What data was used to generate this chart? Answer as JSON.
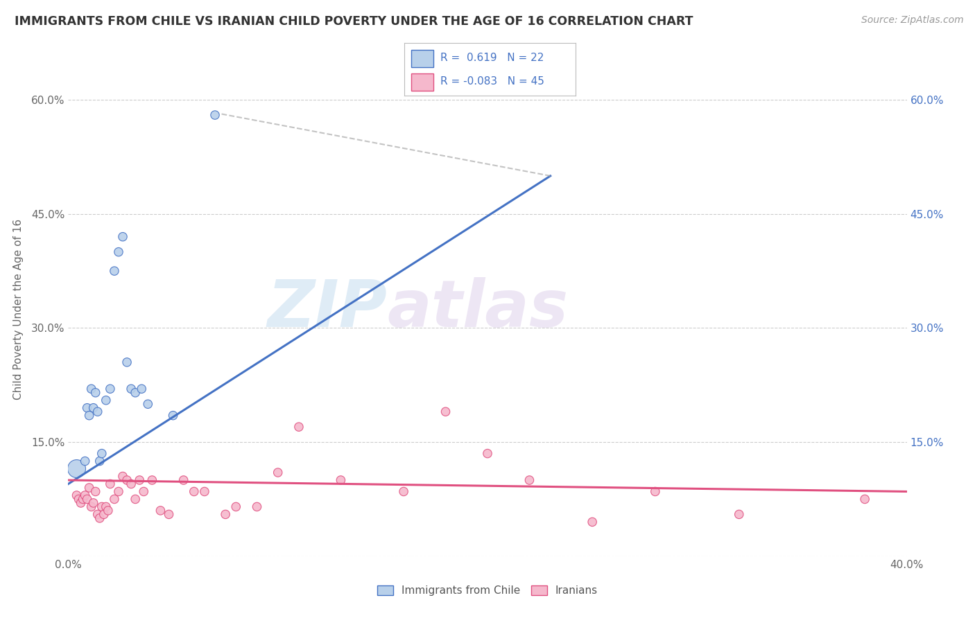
{
  "title": "IMMIGRANTS FROM CHILE VS IRANIAN CHILD POVERTY UNDER THE AGE OF 16 CORRELATION CHART",
  "source": "Source: ZipAtlas.com",
  "ylabel": "Child Poverty Under the Age of 16",
  "xlim": [
    0.0,
    0.4
  ],
  "ylim": [
    0.0,
    0.65
  ],
  "x_ticks": [
    0.0,
    0.1,
    0.2,
    0.3,
    0.4
  ],
  "x_tick_labels": [
    "0.0%",
    "",
    "",
    "",
    "40.0%"
  ],
  "y_ticks": [
    0.0,
    0.15,
    0.3,
    0.45,
    0.6
  ],
  "y_tick_labels": [
    "",
    "15.0%",
    "30.0%",
    "45.0%",
    "60.0%"
  ],
  "chile_R": 0.619,
  "chile_N": 22,
  "iran_R": -0.083,
  "iran_N": 45,
  "chile_color": "#b8d0ea",
  "iran_color": "#f5b8cc",
  "chile_line_color": "#4472c4",
  "iran_line_color": "#e05080",
  "watermark_zip": "ZIP",
  "watermark_atlas": "atlas",
  "chile_scatter_x": [
    0.004,
    0.008,
    0.009,
    0.01,
    0.011,
    0.012,
    0.013,
    0.014,
    0.015,
    0.016,
    0.018,
    0.02,
    0.022,
    0.024,
    0.026,
    0.028,
    0.03,
    0.032,
    0.035,
    0.038,
    0.05,
    0.07
  ],
  "chile_scatter_y": [
    0.115,
    0.125,
    0.195,
    0.185,
    0.22,
    0.195,
    0.215,
    0.19,
    0.125,
    0.135,
    0.205,
    0.22,
    0.375,
    0.4,
    0.42,
    0.255,
    0.22,
    0.215,
    0.22,
    0.2,
    0.185,
    0.58
  ],
  "chile_scatter_size": [
    350,
    80,
    80,
    80,
    80,
    80,
    80,
    80,
    80,
    80,
    80,
    80,
    80,
    80,
    80,
    80,
    80,
    80,
    80,
    80,
    80,
    80
  ],
  "iran_scatter_x": [
    0.004,
    0.005,
    0.006,
    0.007,
    0.008,
    0.009,
    0.01,
    0.011,
    0.012,
    0.013,
    0.014,
    0.015,
    0.016,
    0.017,
    0.018,
    0.019,
    0.02,
    0.022,
    0.024,
    0.026,
    0.028,
    0.03,
    0.032,
    0.034,
    0.036,
    0.04,
    0.044,
    0.048,
    0.055,
    0.06,
    0.065,
    0.075,
    0.08,
    0.09,
    0.1,
    0.11,
    0.13,
    0.16,
    0.18,
    0.2,
    0.22,
    0.25,
    0.28,
    0.32,
    0.38
  ],
  "iran_scatter_y": [
    0.08,
    0.075,
    0.07,
    0.075,
    0.08,
    0.075,
    0.09,
    0.065,
    0.07,
    0.085,
    0.055,
    0.05,
    0.065,
    0.055,
    0.065,
    0.06,
    0.095,
    0.075,
    0.085,
    0.105,
    0.1,
    0.095,
    0.075,
    0.1,
    0.085,
    0.1,
    0.06,
    0.055,
    0.1,
    0.085,
    0.085,
    0.055,
    0.065,
    0.065,
    0.11,
    0.17,
    0.1,
    0.085,
    0.19,
    0.135,
    0.1,
    0.045,
    0.085,
    0.055,
    0.075
  ],
  "iran_scatter_size": [
    80,
    80,
    80,
    80,
    80,
    80,
    80,
    80,
    80,
    80,
    80,
    80,
    80,
    80,
    80,
    80,
    80,
    80,
    80,
    80,
    80,
    80,
    80,
    80,
    80,
    80,
    80,
    80,
    80,
    80,
    80,
    80,
    80,
    80,
    80,
    80,
    80,
    80,
    80,
    80,
    80,
    80,
    80,
    80,
    80
  ],
  "chile_line_x0": 0.0,
  "chile_line_y0": 0.095,
  "chile_line_x1": 0.23,
  "chile_line_y1": 0.5,
  "chile_line_dash_x0": 0.23,
  "chile_line_dash_y0": 0.5,
  "chile_line_dash_x1": 0.072,
  "chile_line_dash_y1": 0.582,
  "iran_line_x0": 0.0,
  "iran_line_y0": 0.1,
  "iran_line_x1": 0.4,
  "iran_line_y1": 0.085
}
